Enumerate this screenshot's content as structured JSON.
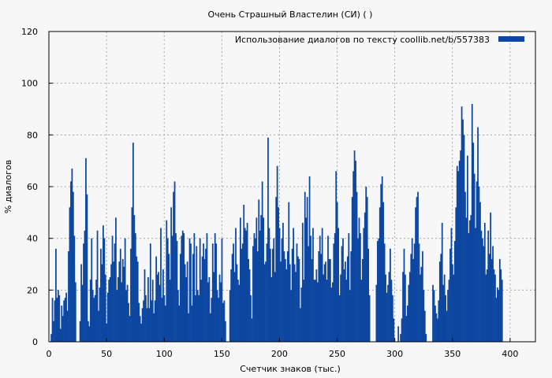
{
  "chart_data": {
    "type": "bar",
    "title": "Очень Страшный Властелин (СИ) ( )",
    "xlabel": "Счетчик знаков (тыс.)",
    "ylabel": "% диалогов",
    "xlim": [
      0,
      422
    ],
    "ylim": [
      0,
      120
    ],
    "xticks": [
      0,
      50,
      100,
      150,
      200,
      250,
      300,
      350,
      400
    ],
    "yticks": [
      0,
      20,
      40,
      60,
      80,
      100,
      120
    ],
    "grid": true,
    "legend_position": "top-right",
    "series": [
      {
        "name": "Использование диалогов по тексту  coollib.net/b/557383",
        "color": "#0d47a1",
        "x_start": 2,
        "x_step": 1,
        "values": [
          3,
          17,
          8,
          16,
          36,
          17,
          20,
          18,
          5,
          14,
          10,
          16,
          17,
          19,
          12,
          35,
          52,
          62,
          67,
          58,
          41,
          23,
          0,
          0,
          0,
          8,
          30,
          22,
          38,
          43,
          71,
          57,
          8,
          6,
          24,
          40,
          20,
          17,
          18,
          24,
          43,
          12,
          21,
          36,
          30,
          45,
          40,
          26,
          7,
          19,
          24,
          25,
          30,
          41,
          31,
          38,
          48,
          20,
          25,
          31,
          36,
          23,
          32,
          29,
          40,
          20,
          22,
          15,
          10,
          36,
          52,
          77,
          49,
          42,
          33,
          31,
          15,
          10,
          7,
          13,
          16,
          28,
          18,
          13,
          25,
          13,
          38,
          16,
          24,
          11,
          16,
          33,
          26,
          27,
          22,
          44,
          17,
          28,
          18,
          14,
          47,
          40,
          34,
          24,
          52,
          41,
          58,
          62,
          42,
          39,
          20,
          14,
          34,
          41,
          43,
          42,
          30,
          25,
          31,
          11,
          40,
          38,
          14,
          34,
          42,
          18,
          37,
          20,
          18,
          40,
          24,
          33,
          38,
          32,
          36,
          42,
          23,
          25,
          11,
          17,
          38,
          27,
          42,
          38,
          20,
          17,
          26,
          23,
          40,
          15,
          16,
          8,
          0,
          0,
          0,
          20,
          28,
          34,
          38,
          27,
          44,
          30,
          24,
          22,
          48,
          36,
          38,
          53,
          44,
          43,
          46,
          32,
          28,
          18,
          9,
          37,
          42,
          40,
          48,
          35,
          55,
          43,
          49,
          62,
          48,
          30,
          31,
          38,
          79,
          44,
          36,
          25,
          36,
          40,
          27,
          56,
          68,
          52,
          44,
          31,
          40,
          46,
          35,
          32,
          28,
          35,
          54,
          30,
          20,
          36,
          44,
          30,
          27,
          38,
          33,
          32,
          13,
          21,
          46,
          24,
          58,
          48,
          56,
          37,
          64,
          41,
          32,
          44,
          24,
          24,
          28,
          23,
          35,
          41,
          34,
          44,
          26,
          30,
          31,
          24,
          41,
          32,
          32,
          21,
          23,
          38,
          42,
          66,
          54,
          44,
          18,
          26,
          37,
          40,
          28,
          31,
          24,
          33,
          42,
          20,
          35,
          56,
          66,
          74,
          70,
          58,
          40,
          48,
          42,
          24,
          32,
          44,
          50,
          60,
          56,
          36,
          18,
          0,
          0,
          0,
          0,
          0,
          22,
          39,
          40,
          52,
          61,
          64,
          54,
          38,
          26,
          19,
          22,
          27,
          36,
          24,
          18,
          9,
          0,
          0,
          0,
          6,
          0,
          3,
          9,
          27,
          36,
          26,
          10,
          14,
          22,
          27,
          34,
          40,
          32,
          38,
          52,
          56,
          58,
          38,
          26,
          29,
          35,
          20,
          12,
          3,
          0,
          0,
          0,
          0,
          0,
          22,
          20,
          14,
          11,
          9,
          16,
          31,
          34,
          46,
          22,
          26,
          18,
          12,
          20,
          24,
          36,
          44,
          30,
          26,
          39,
          52,
          68,
          66,
          70,
          74,
          91,
          86,
          80,
          58,
          48,
          72,
          42,
          47,
          49,
          92,
          77,
          65,
          44,
          62,
          83,
          60,
          54,
          43,
          40,
          37,
          46,
          26,
          28,
          43,
          34,
          50,
          32,
          37,
          28,
          26,
          17,
          21,
          20,
          32,
          28,
          24
        ]
      }
    ]
  }
}
